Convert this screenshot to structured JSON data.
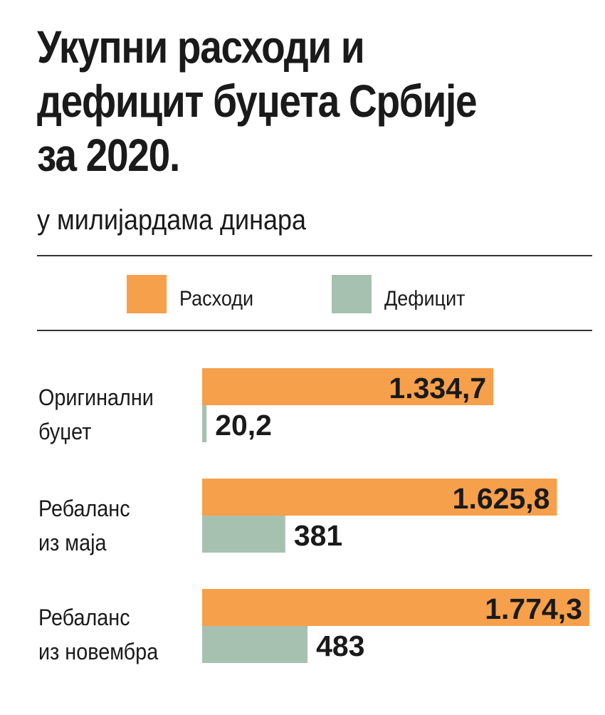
{
  "title": "Укупни расходи и\nдефицит буџета Србије\nза 2020.",
  "subtitle": "у милијардама динара",
  "colors": {
    "expenses": "#f6a04b",
    "deficit": "#a7c1b1"
  },
  "chart_data": {
    "type": "bar",
    "orientation": "horizontal",
    "title": "Укупни расходи и\nдефицит буџета Србије\nза 2020.",
    "subtitle": "у милијардама динара",
    "categories": [
      "Оригинални\nбуџет",
      "Ребаланс\nиз маја",
      "Ребаланс\nиз новембра"
    ],
    "series": [
      {
        "name": "Расходи",
        "values": [
          1334.7,
          1625.8,
          1774.3
        ],
        "labels": [
          "1.334,7",
          "1.625,8",
          "1.774,3"
        ]
      },
      {
        "name": "Дефицит",
        "values": [
          20.2,
          381,
          483
        ],
        "labels": [
          "20,2",
          "381",
          "483"
        ]
      }
    ],
    "legend": {
      "position": "top",
      "entries": [
        "Расходи",
        "Дефицит"
      ]
    },
    "grid": false,
    "axes_visible": false
  }
}
